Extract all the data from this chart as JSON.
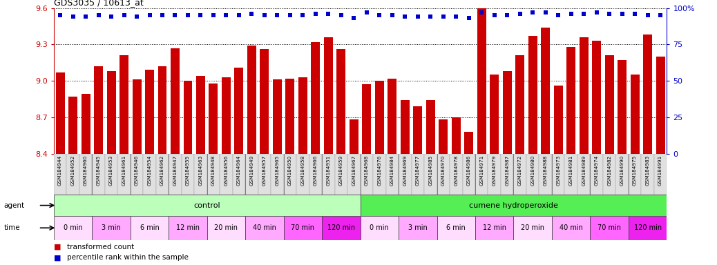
{
  "title": "GDS3035 / 10613_at",
  "bar_color": "#cc0000",
  "dot_color": "#0000cc",
  "ylim_left": [
    8.4,
    9.6
  ],
  "ylim_right": [
    0,
    100
  ],
  "yticks_left": [
    8.4,
    8.7,
    9.0,
    9.3,
    9.6
  ],
  "yticks_right": [
    0,
    25,
    50,
    75,
    100
  ],
  "gsm_labels": [
    "GSM184944",
    "GSM184952",
    "GSM184960",
    "GSM184945",
    "GSM184953",
    "GSM184961",
    "GSM184946",
    "GSM184954",
    "GSM184962",
    "GSM184947",
    "GSM184955",
    "GSM184963",
    "GSM184948",
    "GSM184956",
    "GSM184964",
    "GSM184949",
    "GSM184957",
    "GSM184965",
    "GSM184950",
    "GSM184958",
    "GSM184966",
    "GSM184951",
    "GSM184959",
    "GSM184967",
    "GSM184968",
    "GSM184976",
    "GSM184984",
    "GSM184969",
    "GSM184977",
    "GSM184985",
    "GSM184970",
    "GSM184978",
    "GSM184986",
    "GSM184971",
    "GSM184979",
    "GSM184987",
    "GSM184972",
    "GSM184980",
    "GSM184988",
    "GSM184973",
    "GSM184981",
    "GSM184989",
    "GSM184974",
    "GSM184982",
    "GSM184990",
    "GSM184975",
    "GSM184983",
    "GSM184991"
  ],
  "bar_values": [
    9.07,
    8.87,
    8.89,
    9.12,
    9.08,
    9.21,
    9.01,
    9.09,
    9.12,
    9.27,
    9.0,
    9.04,
    8.98,
    9.03,
    9.11,
    9.29,
    9.26,
    9.01,
    9.02,
    9.03,
    9.32,
    9.36,
    9.26,
    8.68,
    8.97,
    9.0,
    9.02,
    8.84,
    8.79,
    8.84,
    8.68,
    8.7,
    8.58,
    9.72,
    9.05,
    9.08,
    9.21,
    9.37,
    9.44,
    8.96,
    9.28,
    9.36,
    9.33,
    9.21,
    9.17,
    9.05,
    9.38,
    9.2
  ],
  "percentile_values": [
    95,
    94,
    94,
    95,
    94,
    95,
    94,
    95,
    95,
    95,
    95,
    95,
    95,
    95,
    95,
    96,
    95,
    95,
    95,
    95,
    96,
    96,
    95,
    93,
    97,
    95,
    95,
    94,
    94,
    94,
    94,
    94,
    93,
    97,
    95,
    95,
    96,
    97,
    97,
    95,
    96,
    96,
    97,
    96,
    96,
    96,
    95,
    95
  ],
  "agent_groups": [
    {
      "label": "control",
      "color": "#bbffbb",
      "start": 0,
      "end": 24
    },
    {
      "label": "cumene hydroperoxide",
      "color": "#55ee55",
      "start": 24,
      "end": 48
    }
  ],
  "time_colors": [
    "#ffddff",
    "#ffaaff",
    "#ffddff",
    "#ffaaff",
    "#ffddff",
    "#ffaaff",
    "#ff66ff",
    "#ee22ee"
  ],
  "time_labels": [
    "0 min",
    "3 min",
    "6 min",
    "12 min",
    "20 min",
    "40 min",
    "70 min",
    "120 min"
  ],
  "time_starts": [
    0,
    3,
    6,
    9,
    12,
    15,
    18,
    21,
    24,
    27,
    30,
    33,
    36,
    39,
    42,
    45
  ],
  "time_ends": [
    3,
    6,
    9,
    12,
    15,
    18,
    21,
    24,
    27,
    30,
    33,
    36,
    39,
    42,
    45,
    48
  ],
  "bg_color": "#ffffff",
  "left_axis_color": "#cc0000",
  "right_axis_color": "#0000cc"
}
